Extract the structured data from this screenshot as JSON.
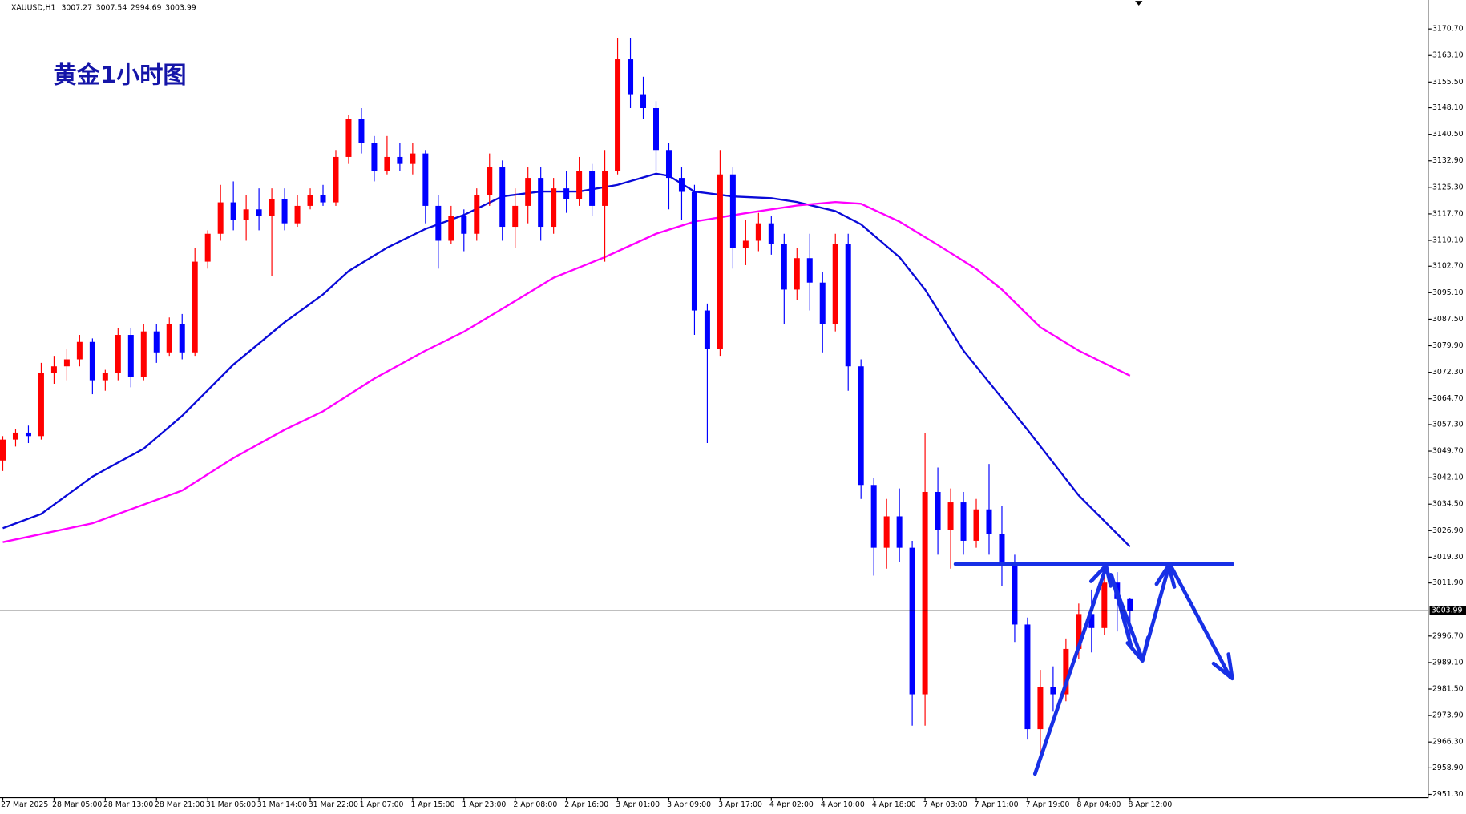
{
  "chart_data": {
    "type": "candlestick",
    "title": "黄金1小时图",
    "symbol": "XAUUSD,H1",
    "open": [
      3047,
      3053,
      3055,
      3054,
      3072,
      3074,
      3076,
      3081,
      3070,
      3072,
      3083,
      3071,
      3084,
      3078,
      3086,
      3078,
      3104,
      3112,
      3121,
      3116,
      3119,
      3117,
      3122,
      3115,
      3120,
      3123,
      3121,
      3134,
      3145,
      3138,
      3130,
      3134,
      3132,
      3135,
      3120,
      3110,
      3117,
      3112,
      3123,
      3131,
      3114,
      3120,
      3128,
      3114,
      3125,
      3122,
      3130,
      3120,
      3130,
      3162,
      3152,
      3148,
      3136,
      3128,
      3124,
      3090,
      3079,
      3129,
      3108,
      3110,
      3115,
      3109,
      3096,
      3105,
      3098,
      3086,
      3109,
      3074,
      3040,
      3022,
      3031,
      3022,
      2980,
      3038,
      3027,
      3035,
      3024,
      3033,
      3026,
      3018,
      3000,
      2970,
      2982,
      2980,
      2993,
      3003,
      2999,
      3012,
      3007.27
    ],
    "high": [
      3054,
      3056,
      3057,
      3075,
      3077,
      3079,
      3083,
      3082,
      3073,
      3085,
      3085,
      3086,
      3086,
      3088,
      3089,
      3108,
      3113,
      3126,
      3127,
      3123,
      3125,
      3125,
      3125,
      3123,
      3125,
      3126,
      3136,
      3146,
      3148,
      3140,
      3140,
      3138,
      3138,
      3136,
      3123,
      3120,
      3119,
      3125,
      3135,
      3133,
      3125,
      3131,
      3131,
      3128,
      3130,
      3134,
      3132,
      3136,
      3168,
      3168,
      3157,
      3150,
      3138,
      3131,
      3126,
      3092,
      3136,
      3131,
      3116,
      3118,
      3117,
      3112,
      3108,
      3112,
      3101,
      3112,
      3112,
      3076,
      3042,
      3036,
      3039,
      3024,
      3055,
      3045,
      3039,
      3038,
      3036,
      3046,
      3034,
      3020,
      3002,
      2987,
      2988,
      2996,
      3006,
      3010,
      3017,
      3015,
      3007.54
    ],
    "low": [
      3044,
      3051,
      3052,
      3053,
      3069,
      3070,
      3074,
      3066,
      3067,
      3070,
      3068,
      3070,
      3075,
      3077,
      3076,
      3077,
      3102,
      3110,
      3113,
      3110,
      3113,
      3100,
      3113,
      3114,
      3119,
      3120,
      3120,
      3132,
      3135,
      3127,
      3129,
      3130,
      3129,
      3115,
      3102,
      3109,
      3107,
      3110,
      3120,
      3110,
      3108,
      3115,
      3110,
      3112,
      3118,
      3120,
      3117,
      3104,
      3129,
      3148,
      3145,
      3130,
      3119,
      3116,
      3083,
      3052,
      3077,
      3102,
      3103,
      3107,
      3106,
      3086,
      3093,
      3090,
      3078,
      3084,
      3067,
      3036,
      3014,
      3016,
      3018,
      2971,
      2971,
      3020,
      3016,
      3020,
      3022,
      3020,
      3011,
      2995,
      2967,
      2962,
      2975,
      2978,
      2990,
      2992,
      2997,
      2998,
      2994.69
    ],
    "close": [
      3053,
      3055,
      3054,
      3072,
      3074,
      3076,
      3081,
      3070,
      3072,
      3083,
      3071,
      3084,
      3078,
      3086,
      3078,
      3104,
      3112,
      3121,
      3116,
      3119,
      3117,
      3122,
      3115,
      3120,
      3123,
      3121,
      3134,
      3145,
      3138,
      3130,
      3134,
      3132,
      3135,
      3120,
      3110,
      3117,
      3112,
      3123,
      3131,
      3114,
      3120,
      3128,
      3114,
      3125,
      3122,
      3130,
      3120,
      3130,
      3162,
      3152,
      3148,
      3136,
      3128,
      3124,
      3090,
      3079,
      3129,
      3108,
      3110,
      3115,
      3109,
      3096,
      3105,
      3098,
      3086,
      3109,
      3074,
      3040,
      3022,
      3031,
      3022,
      2980,
      3038,
      3027,
      3035,
      3024,
      3033,
      3026,
      3018,
      3000,
      2970,
      2982,
      2980,
      2993,
      3003,
      2999,
      3012,
      3007.27,
      3003.99
    ],
    "up_color": "#ff0000",
    "down_color": "#0000ff",
    "overlays": [
      {
        "type": "line",
        "color": "#0a0ad8",
        "x": [
          0,
          3,
          7,
          11,
          14,
          18,
          22,
          25,
          27,
          30,
          33,
          36,
          39,
          42,
          45,
          48,
          51,
          52,
          54,
          57,
          60,
          62,
          65,
          67,
          70,
          72,
          75,
          80,
          84,
          88
        ],
        "values": [
          3027.6,
          3031.7,
          3042.4,
          3050.4,
          3059.8,
          3074.5,
          3086.6,
          3094.6,
          3101.3,
          3108.0,
          3113.4,
          3117.4,
          3122.7,
          3124.1,
          3124.1,
          3126.0,
          3129.2,
          3128.6,
          3124.1,
          3122.7,
          3122.2,
          3121.1,
          3118.5,
          3114.7,
          3105.3,
          3096.0,
          3078.5,
          3055.8,
          3037.0,
          3022.3
        ]
      },
      {
        "type": "line",
        "color": "#ff00ff",
        "x": [
          0,
          7,
          14,
          18,
          22,
          25,
          29,
          33,
          36,
          40,
          43,
          47,
          51,
          54,
          58,
          62,
          65,
          67,
          70,
          73,
          76,
          78,
          81,
          84,
          88
        ],
        "values": [
          3023.6,
          3029.0,
          3038.4,
          3047.7,
          3055.8,
          3061.1,
          3070.5,
          3078.5,
          3083.9,
          3092.7,
          3099.4,
          3105.3,
          3112.0,
          3115.5,
          3117.9,
          3120.1,
          3121.1,
          3120.6,
          3115.5,
          3108.8,
          3101.9,
          3096.0,
          3085.2,
          3078.5,
          3071.3
        ]
      }
    ],
    "last_price": 3003.99,
    "ylim": [
      2950.5,
      3179.0
    ],
    "yticks": [
      {
        "value": 3170.7,
        "label": "3170.70"
      },
      {
        "value": 3163.1,
        "label": "3163.10"
      },
      {
        "value": 3155.5,
        "label": "3155.50"
      },
      {
        "value": 3148.1,
        "label": "3148.10"
      },
      {
        "value": 3140.5,
        "label": "3140.50"
      },
      {
        "value": 3132.9,
        "label": "3132.90"
      },
      {
        "value": 3125.3,
        "label": "3125.30"
      },
      {
        "value": 3117.7,
        "label": "3117.70"
      },
      {
        "value": 3110.1,
        "label": "3110.10"
      },
      {
        "value": 3102.7,
        "label": "3102.70"
      },
      {
        "value": 3095.1,
        "label": "3095.10"
      },
      {
        "value": 3087.5,
        "label": "3087.50"
      },
      {
        "value": 3079.9,
        "label": "3079.90"
      },
      {
        "value": 3072.3,
        "label": "3072.30"
      },
      {
        "value": 3064.7,
        "label": "3064.70"
      },
      {
        "value": 3057.3,
        "label": "3057.30"
      },
      {
        "value": 3049.7,
        "label": "3049.70"
      },
      {
        "value": 3042.1,
        "label": "3042.10"
      },
      {
        "value": 3034.5,
        "label": "3034.50"
      },
      {
        "value": 3026.9,
        "label": "3026.90"
      },
      {
        "value": 3019.3,
        "label": "3019.30"
      },
      {
        "value": 3011.9,
        "label": "3011.90"
      },
      {
        "value": 2996.7,
        "label": "2996.70"
      },
      {
        "value": 2989.1,
        "label": "2989.10"
      },
      {
        "value": 2981.5,
        "label": "2981.50"
      },
      {
        "value": 2973.9,
        "label": "2973.90"
      },
      {
        "value": 2966.3,
        "label": "2966.30"
      },
      {
        "value": 2958.9,
        "label": "2958.90"
      },
      {
        "value": 2951.3,
        "label": "2951.30"
      }
    ],
    "xticks": [
      {
        "value": 0,
        "label": "27 Mar 2025"
      },
      {
        "value": 4,
        "label": "28 Mar 05:00"
      },
      {
        "value": 8,
        "label": "28 Mar 13:00"
      },
      {
        "value": 12,
        "label": "28 Mar 21:00"
      },
      {
        "value": 16,
        "label": "31 Mar 06:00"
      },
      {
        "value": 20,
        "label": "31 Mar 14:00"
      },
      {
        "value": 24,
        "label": "31 Mar 22:00"
      },
      {
        "value": 28,
        "label": "1 Apr 07:00"
      },
      {
        "value": 32,
        "label": "1 Apr 15:00"
      },
      {
        "value": 36,
        "label": "1 Apr 23:00"
      },
      {
        "value": 40,
        "label": "2 Apr 08:00"
      },
      {
        "value": 44,
        "label": "2 Apr 16:00"
      },
      {
        "value": 48,
        "label": "3 Apr 01:00"
      },
      {
        "value": 52,
        "label": "3 Apr 09:00"
      },
      {
        "value": 56,
        "label": "3 Apr 17:00"
      },
      {
        "value": 60,
        "label": "4 Apr 02:00"
      },
      {
        "value": 64,
        "label": "4 Apr 10:00"
      },
      {
        "value": 68,
        "label": "4 Apr 18:00"
      },
      {
        "value": 72,
        "label": "7 Apr 03:00"
      },
      {
        "value": 76,
        "label": "7 Apr 11:00"
      },
      {
        "value": 80,
        "label": "7 Apr 19:00"
      },
      {
        "value": 84,
        "label": "8 Apr 04:00"
      },
      {
        "value": 88,
        "label": "8 Apr 12:00"
      }
    ]
  }
}
